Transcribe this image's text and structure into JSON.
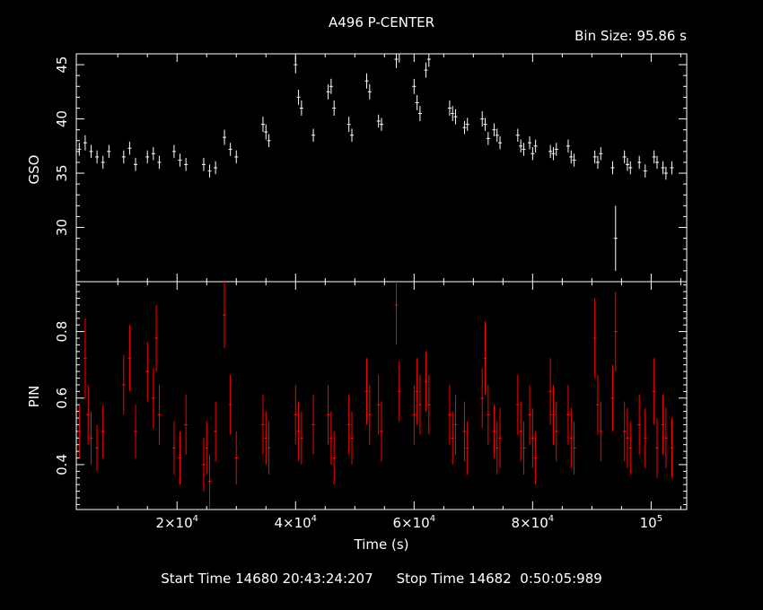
{
  "chart_data": [
    {
      "type": "line",
      "title": "A496 P-CENTER",
      "subtitle": "Bin Size: 95.86 s",
      "ylabel": "GSO",
      "xlim": [
        3000,
        106000
      ],
      "ylim": [
        25,
        46
      ],
      "yticks": [
        30,
        35,
        40,
        45
      ],
      "color": "#ffffff",
      "series": [
        {
          "x": [
            3500,
            4500,
            5500,
            6500,
            7500,
            8500,
            11000,
            12000,
            13000,
            15000,
            16000,
            17000,
            19500,
            20500,
            21500,
            24500,
            25500,
            26500,
            28000,
            29000,
            30000,
            34500,
            35000,
            35500,
            40000,
            40500,
            41000,
            43000,
            45500,
            46000,
            46500,
            49000,
            49500,
            52000,
            52500,
            54000,
            54500,
            57000,
            57500,
            60000,
            60500,
            61000,
            62000,
            62500,
            66000,
            66500,
            67000,
            68500,
            69000,
            71500,
            72000,
            72500,
            73500,
            74000,
            74500,
            77500,
            78000,
            78500,
            79500,
            80000,
            80500,
            83000,
            83500,
            84000,
            86000,
            86500,
            87000,
            90500,
            91000,
            91500,
            93500,
            94000,
            95500,
            96000,
            96500,
            98000,
            99000,
            100500,
            101000,
            102000,
            102500,
            103500
          ],
          "y": [
            37.2,
            37.8,
            37.0,
            36.5,
            36.0,
            37.0,
            36.5,
            37.3,
            35.8,
            36.5,
            36.8,
            36.0,
            37.0,
            36.2,
            35.8,
            35.8,
            35.2,
            35.5,
            38.3,
            37.2,
            36.5,
            39.5,
            38.8,
            38.0,
            45.0,
            42.0,
            41.0,
            38.5,
            42.5,
            43.0,
            41.0,
            39.5,
            38.5,
            43.5,
            42.5,
            39.8,
            39.5,
            45.5,
            46.0,
            43.0,
            41.5,
            40.5,
            44.5,
            45.5,
            41.0,
            40.5,
            40.2,
            39.2,
            39.5,
            40.0,
            39.5,
            38.2,
            39.0,
            38.5,
            37.8,
            38.5,
            37.5,
            37.2,
            37.8,
            36.8,
            37.5,
            37.0,
            36.8,
            37.2,
            37.5,
            36.5,
            36.2,
            36.5,
            36.0,
            36.8,
            35.5,
            29.0,
            36.5,
            35.8,
            35.5,
            36.0,
            35.2,
            36.5,
            36.0,
            35.5,
            35.0,
            35.5
          ],
          "errors": [
            0.6,
            0.7,
            0.6,
            0.6,
            0.6,
            0.6,
            0.6,
            0.6,
            0.6,
            0.6,
            0.6,
            0.6,
            0.6,
            0.6,
            0.6,
            0.6,
            0.6,
            0.6,
            0.7,
            0.6,
            0.6,
            0.7,
            0.7,
            0.6,
            0.8,
            0.7,
            0.7,
            0.6,
            0.7,
            0.7,
            0.7,
            0.7,
            0.6,
            0.7,
            0.7,
            0.6,
            0.6,
            0.8,
            0.8,
            0.7,
            0.7,
            0.7,
            0.7,
            0.7,
            0.7,
            0.7,
            0.7,
            0.6,
            0.6,
            0.7,
            0.6,
            0.6,
            0.6,
            0.6,
            0.6,
            0.6,
            0.6,
            0.6,
            0.6,
            0.6,
            0.6,
            0.6,
            0.6,
            0.6,
            0.6,
            0.6,
            0.6,
            0.6,
            0.6,
            0.6,
            0.6,
            3.0,
            0.6,
            0.6,
            0.6,
            0.6,
            0.6,
            0.6,
            0.6,
            0.6,
            0.6,
            0.6
          ]
        }
      ]
    },
    {
      "type": "line",
      "ylabel": "PIN",
      "xlabel": "Time (s)",
      "xlim": [
        3000,
        106000
      ],
      "ylim": [
        0.265,
        0.95
      ],
      "yticks": [
        0.4,
        0.6,
        0.8
      ],
      "xticks": [
        20000,
        40000,
        60000,
        80000,
        100000
      ],
      "xtick_labels": [
        "2×10",
        "4×10",
        "6×10",
        "8×10",
        "10"
      ],
      "xtick_exponents": [
        "4",
        "4",
        "4",
        "4",
        "5"
      ],
      "color": "#ff0000",
      "series": [
        {
          "x": [
            3500,
            4500,
            5000,
            5500,
            6500,
            7500,
            11000,
            12000,
            13000,
            15000,
            16000,
            16500,
            17000,
            19500,
            20500,
            21500,
            24500,
            25000,
            25500,
            26500,
            28000,
            29000,
            30000,
            34500,
            35000,
            35500,
            40000,
            40500,
            41000,
            43000,
            45500,
            46000,
            46500,
            49000,
            49500,
            52000,
            52500,
            54000,
            54500,
            57000,
            57500,
            60000,
            60500,
            61000,
            62000,
            62500,
            66000,
            66500,
            67000,
            68500,
            69000,
            71500,
            72000,
            72500,
            73500,
            74000,
            74500,
            77500,
            78000,
            78500,
            79500,
            80000,
            80500,
            83000,
            83500,
            84000,
            86000,
            86500,
            87000,
            90500,
            91000,
            91500,
            93500,
            94000,
            95500,
            96000,
            96500,
            98000,
            99000,
            100500,
            101000,
            102000,
            102500,
            103500
          ],
          "y": [
            0.5,
            0.72,
            0.55,
            0.48,
            0.45,
            0.5,
            0.64,
            0.72,
            0.5,
            0.68,
            0.6,
            0.78,
            0.55,
            0.45,
            0.42,
            0.52,
            0.4,
            0.45,
            0.35,
            0.5,
            0.85,
            0.58,
            0.42,
            0.52,
            0.48,
            0.45,
            0.55,
            0.5,
            0.48,
            0.52,
            0.55,
            0.48,
            0.42,
            0.52,
            0.48,
            0.62,
            0.55,
            0.58,
            0.5,
            0.88,
            0.62,
            0.55,
            0.62,
            0.58,
            0.65,
            0.58,
            0.55,
            0.48,
            0.52,
            0.5,
            0.45,
            0.6,
            0.72,
            0.55,
            0.5,
            0.45,
            0.48,
            0.58,
            0.5,
            0.45,
            0.55,
            0.48,
            0.42,
            0.62,
            0.55,
            0.5,
            0.55,
            0.48,
            0.45,
            0.78,
            0.58,
            0.5,
            0.6,
            0.8,
            0.5,
            0.48,
            0.45,
            0.52,
            0.48,
            0.62,
            0.45,
            0.52,
            0.48,
            0.45
          ],
          "errors": [
            0.08,
            0.12,
            0.09,
            0.08,
            0.07,
            0.08,
            0.09,
            0.1,
            0.08,
            0.09,
            0.09,
            0.1,
            0.09,
            0.08,
            0.08,
            0.09,
            0.08,
            0.08,
            0.08,
            0.09,
            0.1,
            0.09,
            0.08,
            0.09,
            0.08,
            0.08,
            0.09,
            0.09,
            0.08,
            0.09,
            0.09,
            0.08,
            0.08,
            0.09,
            0.08,
            0.1,
            0.09,
            0.09,
            0.09,
            0.12,
            0.09,
            0.09,
            0.1,
            0.09,
            0.09,
            0.09,
            0.09,
            0.08,
            0.09,
            0.09,
            0.08,
            0.09,
            0.11,
            0.09,
            0.08,
            0.08,
            0.09,
            0.09,
            0.09,
            0.08,
            0.09,
            0.09,
            0.08,
            0.1,
            0.09,
            0.09,
            0.09,
            0.09,
            0.08,
            0.12,
            0.09,
            0.09,
            0.1,
            0.12,
            0.09,
            0.09,
            0.08,
            0.09,
            0.09,
            0.1,
            0.09,
            0.09,
            0.09,
            0.09
          ]
        }
      ]
    }
  ],
  "footer": {
    "start_label": "Start Time",
    "start_value": "14680 20:43:24:207",
    "stop_label": "Stop Time",
    "stop_value": "14682  0:50:05:989"
  }
}
